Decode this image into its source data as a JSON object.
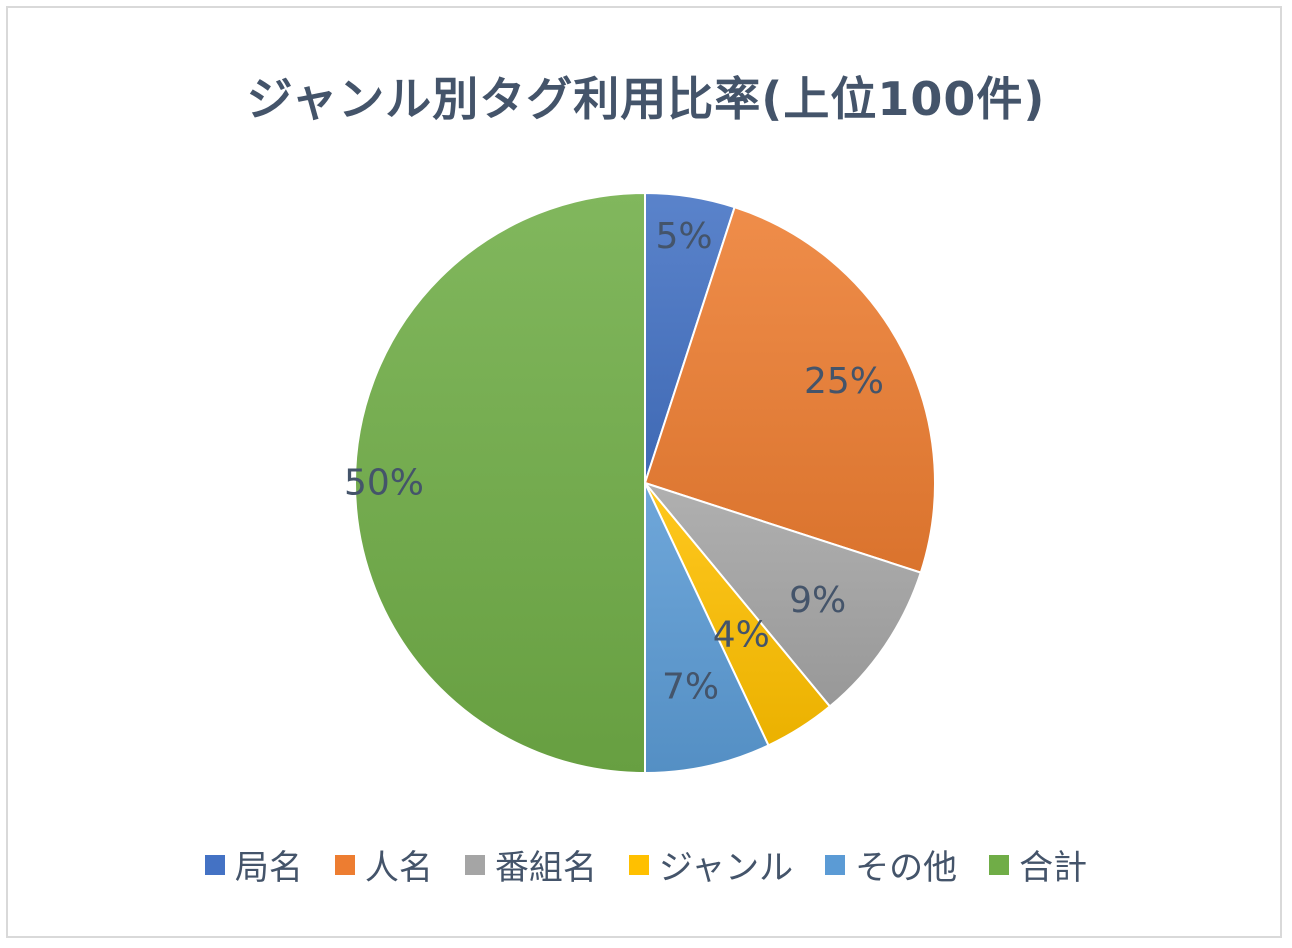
{
  "chart_data": {
    "type": "pie",
    "title": "ジャンル別タグ利用比率(上位100件)",
    "categories": [
      "局名",
      "人名",
      "番組名",
      "ジャンル",
      "その他",
      "合計"
    ],
    "values": [
      5,
      25,
      9,
      4,
      7,
      50
    ],
    "labels": [
      "5%",
      "25%",
      "9%",
      "4%",
      "7%",
      "50%"
    ],
    "colors": [
      "#4472c4",
      "#ed7d31",
      "#a5a5a5",
      "#ffc000",
      "#5b9bd5",
      "#70ad47"
    ],
    "legend": "bottom",
    "start_angle": "12 o'clock",
    "direction": "clockwise"
  }
}
